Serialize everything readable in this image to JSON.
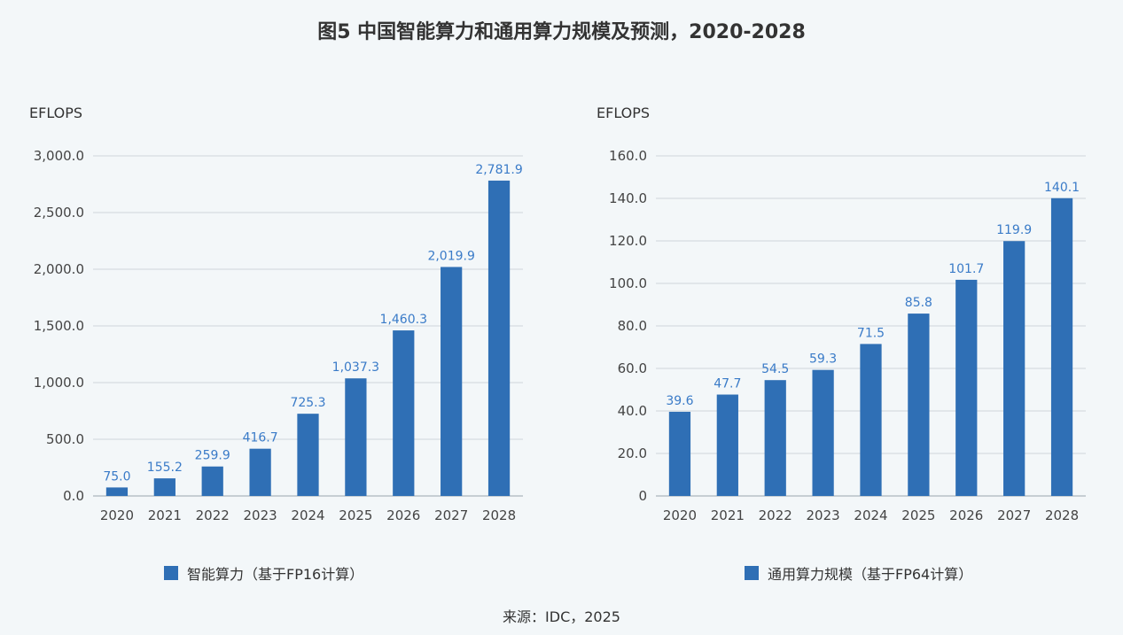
{
  "title": "图5 中国智能算力和通用算力规模及预测，2020-2028",
  "source": "来源：IDC，2025",
  "colors": {
    "bar": "#2f6fb5",
    "label": "#3a7bc8",
    "grid": "#cfd6dc"
  },
  "chart_data": [
    {
      "type": "bar",
      "ylabel": "EFLOPS",
      "categories": [
        "2020",
        "2021",
        "2022",
        "2023",
        "2024",
        "2025",
        "2026",
        "2027",
        "2028"
      ],
      "series": [
        {
          "name": "智能算力（基于FP16计算）",
          "values": [
            75.0,
            155.2,
            259.9,
            416.7,
            725.3,
            1037.3,
            1460.3,
            2019.9,
            2781.9
          ]
        }
      ],
      "data_labels": [
        "75.0",
        "155.2",
        "259.9",
        "416.7",
        "725.3",
        "1,037.3",
        "1,460.3",
        "2,019.9",
        "2,781.9"
      ],
      "ylim": [
        0,
        3000
      ],
      "yticks": [
        0,
        500,
        1000,
        1500,
        2000,
        2500,
        3000
      ],
      "ytick_labels": [
        "0.0",
        "500.0",
        "1,000.0",
        "1,500.0",
        "2,000.0",
        "2,500.0",
        "3,000.0"
      ],
      "grid": true,
      "legend": "bottom"
    },
    {
      "type": "bar",
      "ylabel": "EFLOPS",
      "categories": [
        "2020",
        "2021",
        "2022",
        "2023",
        "2024",
        "2025",
        "2026",
        "2027",
        "2028"
      ],
      "series": [
        {
          "name": "通用算力规模（基于FP64计算）",
          "values": [
            39.6,
            47.7,
            54.5,
            59.3,
            71.5,
            85.8,
            101.7,
            119.9,
            140.1
          ]
        }
      ],
      "data_labels": [
        "39.6",
        "47.7",
        "54.5",
        "59.3",
        "71.5",
        "85.8",
        "101.7",
        "119.9",
        "140.1"
      ],
      "ylim": [
        0,
        160
      ],
      "yticks": [
        0,
        20,
        40,
        60,
        80,
        100,
        120,
        140,
        160
      ],
      "ytick_labels": [
        "0",
        "20.0",
        "40.0",
        "60.0",
        "80.0",
        "100.0",
        "120.0",
        "140.0",
        "160.0"
      ],
      "grid": true,
      "legend": "bottom"
    }
  ]
}
